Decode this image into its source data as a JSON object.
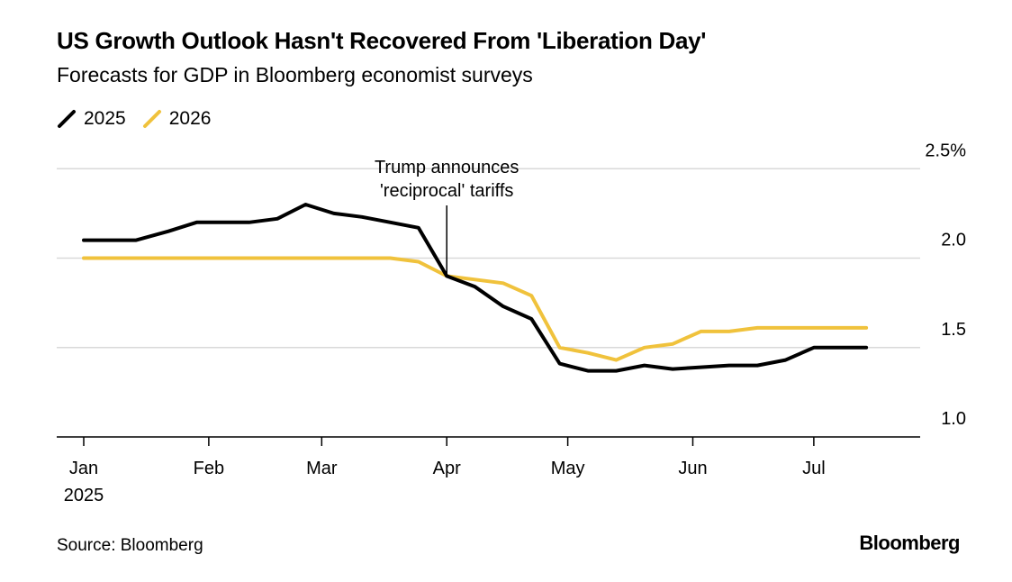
{
  "title": "US Growth Outlook Hasn't Recovered From 'Liberation Day'",
  "subtitle": "Forecasts for GDP in Bloomberg economist surveys",
  "source": "Source: Bloomberg",
  "logo": "Bloomberg",
  "chart_data": {
    "type": "line",
    "title": "US Growth Outlook Hasn't Recovered From 'Liberation Day'",
    "subtitle": "Forecasts for GDP in Bloomberg economist surveys",
    "xlabel": "",
    "ylabel": "",
    "ylim": [
      1.0,
      2.5
    ],
    "xlim": [
      "2025-01-01",
      "2025-07-31"
    ],
    "grid": true,
    "legend_position": "top-left",
    "y_ticks": [
      {
        "value": 1.0,
        "label": "1.0"
      },
      {
        "value": 1.5,
        "label": "1.5"
      },
      {
        "value": 2.0,
        "label": "2.0"
      },
      {
        "value": 2.5,
        "label": "2.5%"
      }
    ],
    "x_ticks": [
      {
        "date": "2025-01-01",
        "label": "Jan",
        "sublabel": "2025"
      },
      {
        "date": "2025-02-01",
        "label": "Feb"
      },
      {
        "date": "2025-03-01",
        "label": "Mar"
      },
      {
        "date": "2025-04-01",
        "label": "Apr"
      },
      {
        "date": "2025-05-01",
        "label": "May"
      },
      {
        "date": "2025-06-01",
        "label": "Jun"
      },
      {
        "date": "2025-07-01",
        "label": "Jul"
      }
    ],
    "x": [
      "2025-01-01",
      "2025-01-14",
      "2025-01-22",
      "2025-01-29",
      "2025-02-11",
      "2025-02-18",
      "2025-02-25",
      "2025-03-04",
      "2025-03-11",
      "2025-03-18",
      "2025-03-25",
      "2025-04-01",
      "2025-04-08",
      "2025-04-15",
      "2025-04-22",
      "2025-04-29",
      "2025-05-06",
      "2025-05-13",
      "2025-05-20",
      "2025-05-27",
      "2025-06-03",
      "2025-06-10",
      "2025-06-17",
      "2025-06-24",
      "2025-07-01",
      "2025-07-14"
    ],
    "series": [
      {
        "name": "2025",
        "color": "#000000",
        "values": [
          2.1,
          2.1,
          2.15,
          2.2,
          2.2,
          2.22,
          2.3,
          2.25,
          2.23,
          2.2,
          2.17,
          1.9,
          1.84,
          1.73,
          1.66,
          1.41,
          1.37,
          1.37,
          1.4,
          1.38,
          1.39,
          1.4,
          1.4,
          1.43,
          1.5,
          1.5
        ]
      },
      {
        "name": "2026",
        "color": "#F0C23C",
        "values": [
          2.0,
          2.0,
          2.0,
          2.0,
          2.0,
          2.0,
          2.0,
          2.0,
          2.0,
          2.0,
          1.98,
          1.9,
          1.88,
          1.86,
          1.79,
          1.5,
          1.47,
          1.43,
          1.5,
          1.52,
          1.59,
          1.59,
          1.61,
          1.61,
          1.61,
          1.61
        ]
      }
    ],
    "annotations": [
      {
        "date": "2025-04-01",
        "value": 1.9,
        "lines": [
          "Trump announces",
          "'reciprocal' tariffs"
        ]
      }
    ]
  }
}
